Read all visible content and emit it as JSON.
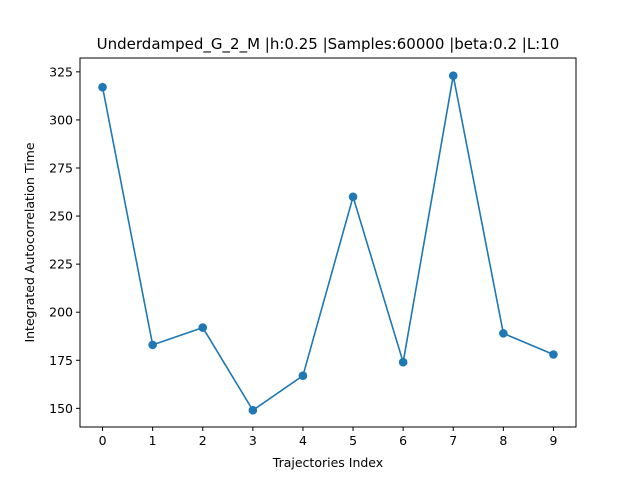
{
  "chart_data": {
    "type": "line",
    "title": "Underdamped_G_2_M |h:0.25 |Samples:60000 |beta:0.2 |L:10",
    "xlabel": "Trajectories Index",
    "ylabel": "Integrated Autocorrelation Time",
    "x": [
      0,
      1,
      2,
      3,
      4,
      5,
      6,
      7,
      8,
      9
    ],
    "series": [
      {
        "values": [
          317,
          183,
          192,
          149,
          167,
          260,
          174,
          323,
          189,
          178
        ],
        "color": "#1f77b4",
        "marker": "circle"
      }
    ],
    "xticks": [
      "0",
      "1",
      "2",
      "3",
      "4",
      "5",
      "6",
      "7",
      "8",
      "9"
    ],
    "yticks": [
      "150",
      "175",
      "200",
      "225",
      "250",
      "275",
      "300",
      "325"
    ],
    "xlim": [
      -0.45,
      9.45
    ],
    "ylim": [
      140.3,
      332.2
    ],
    "grid": false,
    "legend": "none"
  }
}
